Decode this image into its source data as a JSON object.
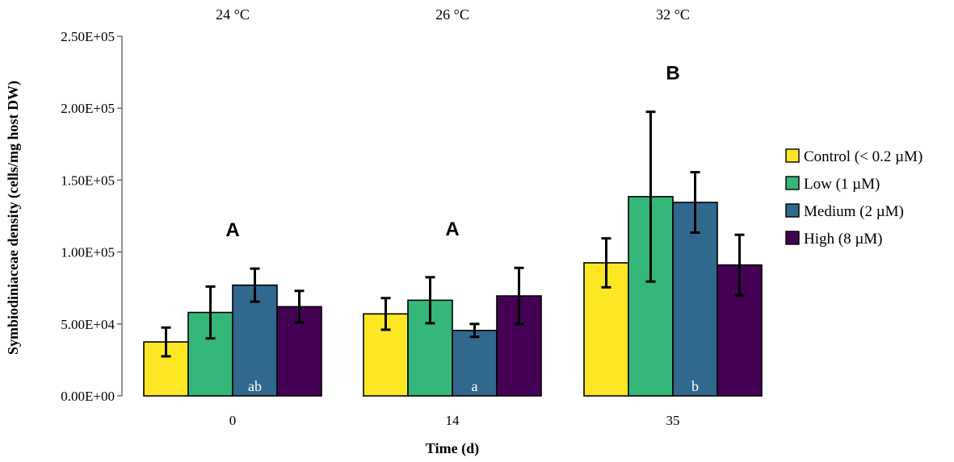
{
  "chart_data": {
    "type": "bar",
    "title": "",
    "xlabel": "Time (d)",
    "ylabel": "Symbiodiniaceae density (cells/mg host DW)",
    "ylim": [
      0,
      250000
    ],
    "yticks": [
      0,
      50000,
      100000,
      150000,
      200000,
      250000
    ],
    "ytick_labels": [
      "0.00E+00",
      "5.00E+04",
      "1.00E+05",
      "1.50E+05",
      "2.00E+05",
      "2.50E+05"
    ],
    "categories": [
      "0",
      "14",
      "35"
    ],
    "temperatures": [
      "24 °C",
      "26 °C",
      "32 °C"
    ],
    "group_letters": [
      "A",
      "A",
      "B"
    ],
    "bar_letters": {
      "series": "Medium (2 µM)",
      "labels": [
        "ab",
        "a",
        "b"
      ]
    },
    "series": [
      {
        "name": "Control (< 0.2 µM)",
        "color": "#FDE725",
        "values": [
          37500,
          57000,
          92500
        ],
        "errors": [
          10000,
          11000,
          17000
        ]
      },
      {
        "name": "Low (1 µM)",
        "color": "#35B779",
        "values": [
          58000,
          66500,
          138500
        ],
        "errors": [
          18000,
          16000,
          59000
        ]
      },
      {
        "name": "Medium (2 µM)",
        "color": "#31688E",
        "values": [
          77000,
          45500,
          134500
        ],
        "errors": [
          11500,
          4500,
          21000
        ]
      },
      {
        "name": "High (8 µM)",
        "color": "#440154",
        "values": [
          62000,
          69500,
          91000
        ],
        "errors": [
          11000,
          19500,
          21000
        ]
      }
    ],
    "legend_position": "right",
    "grid": false
  }
}
